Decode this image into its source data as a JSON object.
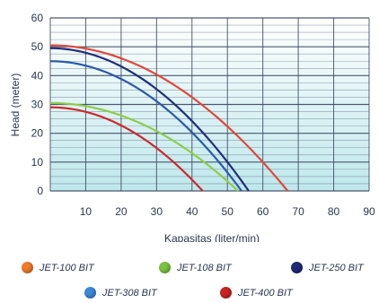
{
  "chart_data": {
    "type": "line",
    "title": "",
    "xlabel": "Kapasitas (liter/min)",
    "ylabel": "Head (meter)",
    "xlim": [
      0,
      90
    ],
    "ylim": [
      0,
      60
    ],
    "x_ticks": [
      "10",
      "20",
      "30",
      "40",
      "50",
      "60",
      "70",
      "80",
      "90"
    ],
    "y_ticks": [
      "0",
      "10",
      "20",
      "30",
      "40",
      "50",
      "60"
    ],
    "grid": true,
    "legend_position": "bottom",
    "series": [
      {
        "name": "JET-100 BIT",
        "color": "#e0483a",
        "dot_color": "#f07a2a",
        "shutoff_head": 50.5,
        "max_flow": 67
      },
      {
        "name": "JET-108 BIT",
        "color": "#8fcc4a",
        "dot_color": "#7cc242",
        "shutoff_head": 30.5,
        "max_flow": 53
      },
      {
        "name": "JET-250 BIT",
        "color": "#1f2f7a",
        "dot_color": "#1c2a78",
        "shutoff_head": 49.5,
        "max_flow": 56
      },
      {
        "name": "JET-308 BIT",
        "color": "#2a5aa8",
        "dot_color": "#3a8ad8",
        "shutoff_head": 45,
        "max_flow": 54
      },
      {
        "name": "JET-400 BIT",
        "color": "#cc2a2a",
        "dot_color": "#c82424",
        "shutoff_head": 29,
        "max_flow": 43
      }
    ]
  },
  "colors": {
    "plot_bg_top": "#ffffff",
    "plot_bg_bottom": "#bfe8ec",
    "grid": "#3a4660"
  }
}
